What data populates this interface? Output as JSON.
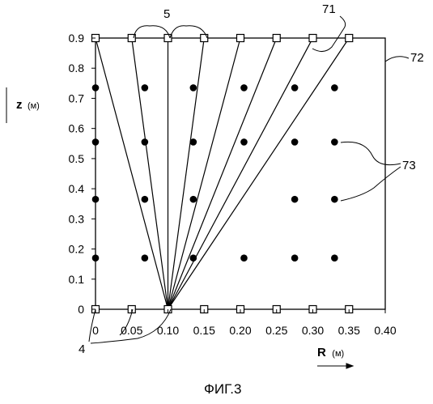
{
  "figure": {
    "caption": "ФИГ.3",
    "axis_r": {
      "label": "R",
      "unit": "(м)"
    },
    "axis_z": {
      "label": "z",
      "unit": "(м)"
    },
    "x_ticks": [
      "0",
      "0.05",
      "0.10",
      "0.15",
      "0.20",
      "0.25",
      "0.30",
      "0.35",
      "0.40"
    ],
    "y_ticks": [
      "0",
      "0.1",
      "0.2",
      "0.3",
      "0.4",
      "0.5",
      "0.6",
      "0.7",
      "0.8",
      "0.9"
    ],
    "callouts": {
      "label_4": "4",
      "label_5": "5",
      "label_71": "71",
      "label_72": "72",
      "label_73": "73"
    },
    "geometry_data": {
      "x_range": [
        0,
        0.4
      ],
      "z_range": [
        0,
        0.9
      ],
      "apex": [
        0.1,
        0.0
      ],
      "top_markers_r": [
        0,
        0.05,
        0.1,
        0.15,
        0.2,
        0.25,
        0.3,
        0.35
      ],
      "bottom_markers_r": [
        0,
        0.05,
        0.1,
        0.15,
        0.2,
        0.25,
        0.3,
        0.35
      ],
      "dot_r": [
        0,
        0.068,
        0.135,
        0.205,
        0.275,
        0.33
      ],
      "dot_z": [
        0.17,
        0.365,
        0.555,
        0.735
      ],
      "missing_dots": [
        [
          0.205,
          0.365
        ]
      ]
    }
  }
}
